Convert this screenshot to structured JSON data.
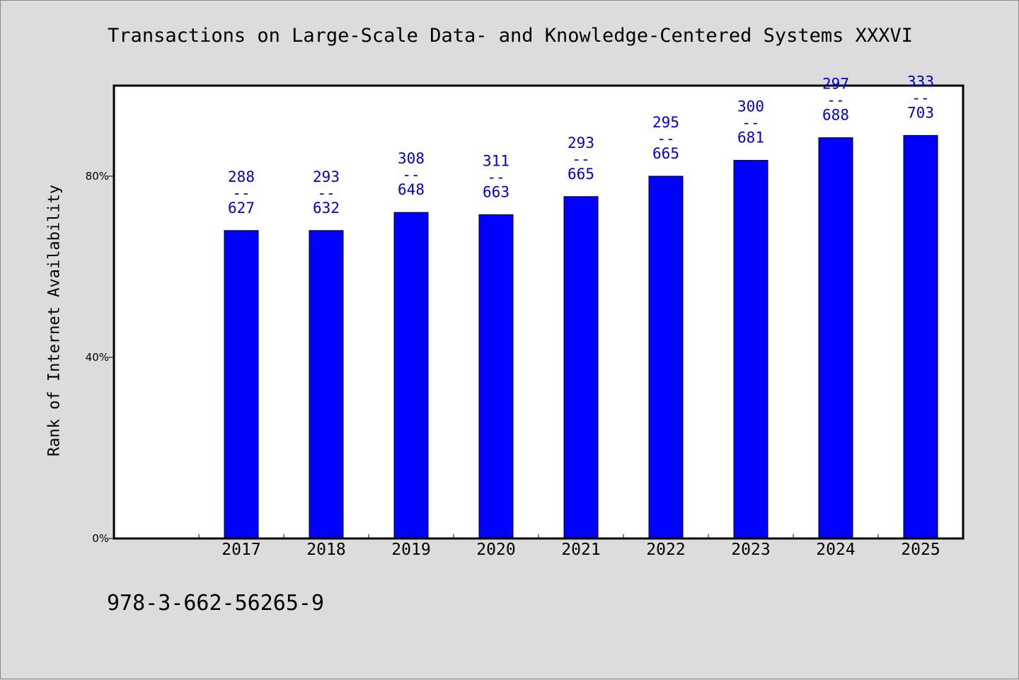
{
  "title": "Transactions on Large-Scale Data- and Knowledge-Centered Systems XXXVI",
  "footer_code": "978-3-662-56265-9",
  "colors": {
    "background": "#dcdcdc",
    "plot_bg": "#ffffff",
    "bar": "#0000ff",
    "label": "#0000cc"
  },
  "chart_data": {
    "type": "bar",
    "title": "Transactions on Large-Scale Data- and Knowledge-Centered Systems XXXVI",
    "xlabel": "",
    "ylabel": "Rank of Internet Availability",
    "categories": [
      "2017",
      "2018",
      "2019",
      "2020",
      "2021",
      "2022",
      "2023",
      "2024",
      "2025"
    ],
    "values": [
      68,
      68,
      72,
      71.5,
      75.5,
      80,
      83.5,
      88.5,
      89
    ],
    "data_labels": [
      [
        "288",
        "--",
        "627"
      ],
      [
        "293",
        "--",
        "632"
      ],
      [
        "308",
        "--",
        "648"
      ],
      [
        "311",
        "--",
        "663"
      ],
      [
        "293",
        "--",
        "665"
      ],
      [
        "295",
        "--",
        "665"
      ],
      [
        "300",
        "--",
        "681"
      ],
      [
        "297",
        "--",
        "688"
      ],
      [
        "333",
        "--",
        "703"
      ]
    ],
    "yticks": [
      {
        "value": 0,
        "label": "0%"
      },
      {
        "value": 40,
        "label": "40%"
      },
      {
        "value": 80,
        "label": "80%"
      }
    ],
    "ylim": [
      0,
      100
    ],
    "grid": false,
    "legend": "none"
  }
}
